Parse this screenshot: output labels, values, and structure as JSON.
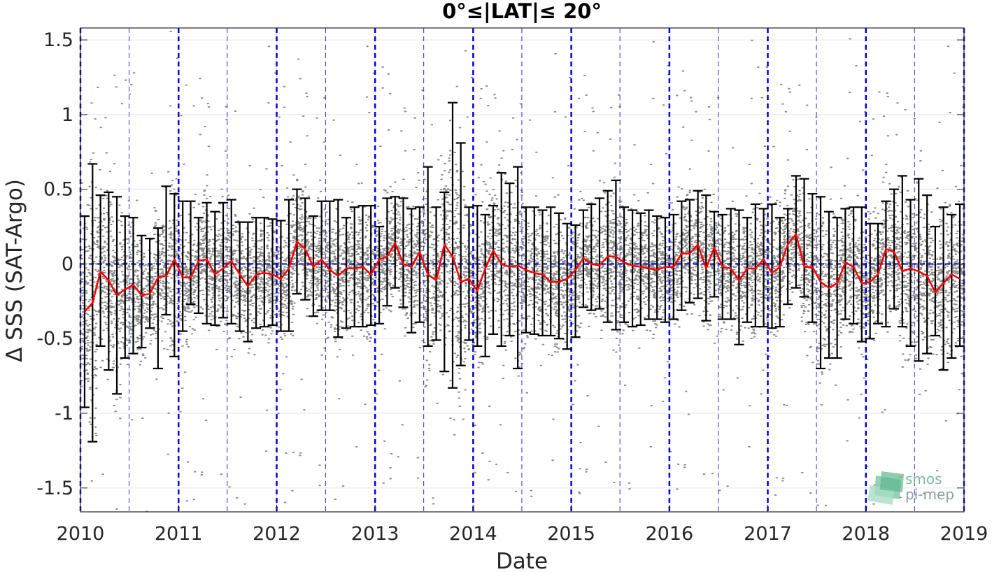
{
  "chart_data": {
    "type": "line",
    "title": "0°≤|LAT|≤ 20°",
    "xlabel": "Date",
    "ylabel": "Δ SSS (SAT-Argo)",
    "xlim": [
      "2010-01-01",
      "2019-01-01"
    ],
    "ylim": [
      -1.66,
      1.58
    ],
    "x_ticks": [
      "2010",
      "2011",
      "2012",
      "2013",
      "2014",
      "2015",
      "2016",
      "2017",
      "2018",
      "2019"
    ],
    "y_ticks": [
      -1.5,
      -1,
      -0.5,
      0,
      0.5,
      1,
      1.5
    ],
    "y_tick_labels": [
      "-1.5",
      "-1",
      "-0.5",
      "0",
      "0.5",
      "1",
      "1.5"
    ],
    "grid": true,
    "legend": "none",
    "colors": {
      "mean_line": "#ff0000",
      "error_bars": "#000000",
      "scatter_points": "#888888",
      "year_lines": "#0000e0",
      "zero_line": "#0000e0"
    },
    "series": [
      {
        "type": "line",
        "x": [
          "2010-01",
          "2010-02",
          "2010-03",
          "2010-04",
          "2010-05",
          "2010-06",
          "2010-07",
          "2010-08",
          "2010-09",
          "2010-10",
          "2010-11",
          "2010-12",
          "2011-01",
          "2011-02",
          "2011-03",
          "2011-04",
          "2011-05",
          "2011-06",
          "2011-07",
          "2011-08",
          "2011-09",
          "2011-10",
          "2011-11",
          "2011-12",
          "2012-01",
          "2012-02",
          "2012-03",
          "2012-04",
          "2012-05",
          "2012-06",
          "2012-07",
          "2012-08",
          "2012-09",
          "2012-10",
          "2012-11",
          "2012-12",
          "2013-01",
          "2013-02",
          "2013-03",
          "2013-04",
          "2013-05",
          "2013-06",
          "2013-07",
          "2013-08",
          "2013-09",
          "2013-10",
          "2013-11",
          "2013-12",
          "2014-01",
          "2014-02",
          "2014-03",
          "2014-04",
          "2014-05",
          "2014-06",
          "2014-07",
          "2014-08",
          "2014-09",
          "2014-10",
          "2014-11",
          "2014-12",
          "2015-01",
          "2015-02",
          "2015-03",
          "2015-04",
          "2015-05",
          "2015-06",
          "2015-07",
          "2015-08",
          "2015-09",
          "2015-10",
          "2015-11",
          "2015-12",
          "2016-01",
          "2016-02",
          "2016-03",
          "2016-04",
          "2016-05",
          "2016-06",
          "2016-07",
          "2016-08",
          "2016-09",
          "2016-10",
          "2016-11",
          "2016-12",
          "2017-01",
          "2017-02",
          "2017-03",
          "2017-04",
          "2017-05",
          "2017-06",
          "2017-07",
          "2017-08",
          "2017-09",
          "2017-10",
          "2017-11",
          "2017-12",
          "2018-01",
          "2018-02",
          "2018-03",
          "2018-04",
          "2018-05",
          "2018-06",
          "2018-07",
          "2018-08",
          "2018-09",
          "2018-10",
          "2018-11",
          "2018-12"
        ],
        "y": [
          -0.32,
          -0.26,
          -0.05,
          -0.11,
          -0.21,
          -0.17,
          -0.14,
          -0.21,
          -0.2,
          -0.09,
          -0.08,
          0.03,
          -0.09,
          -0.09,
          0.02,
          0.03,
          -0.07,
          -0.03,
          0.02,
          -0.07,
          -0.15,
          -0.07,
          -0.06,
          -0.07,
          -0.1,
          -0.03,
          0.15,
          0.1,
          -0.02,
          0.03,
          -0.04,
          -0.08,
          -0.03,
          -0.03,
          -0.02,
          -0.07,
          0.03,
          0.05,
          0.14,
          0.0,
          -0.02,
          0.08,
          -0.07,
          -0.11,
          0.13,
          0.05,
          -0.12,
          -0.1,
          -0.18,
          -0.03,
          0.09,
          0.0,
          -0.02,
          -0.01,
          -0.04,
          -0.06,
          -0.07,
          -0.12,
          -0.12,
          -0.1,
          -0.04,
          0.04,
          0.0,
          -0.01,
          0.05,
          0.05,
          0.01,
          -0.01,
          -0.02,
          -0.03,
          -0.04,
          -0.02,
          -0.02,
          0.07,
          0.07,
          0.13,
          -0.03,
          0.11,
          -0.02,
          -0.03,
          -0.11,
          -0.03,
          -0.03,
          0.03,
          -0.06,
          -0.02,
          0.13,
          0.2,
          -0.02,
          -0.02,
          -0.12,
          -0.16,
          -0.13,
          0.01,
          -0.02,
          -0.13,
          -0.12,
          -0.07,
          0.1,
          0.08,
          -0.05,
          -0.03,
          -0.05,
          -0.08,
          -0.19,
          -0.13,
          -0.07,
          -0.1
        ]
      },
      {
        "type": "errorbar",
        "upper": [
          0.32,
          0.67,
          0.46,
          0.48,
          0.45,
          0.32,
          0.31,
          0.19,
          0.17,
          0.24,
          0.52,
          0.47,
          0.42,
          0.42,
          0.31,
          0.41,
          0.35,
          0.41,
          0.43,
          0.28,
          0.28,
          0.31,
          0.31,
          0.3,
          0.29,
          0.43,
          0.5,
          0.44,
          0.32,
          0.42,
          0.42,
          0.43,
          0.31,
          0.38,
          0.39,
          0.39,
          0.25,
          0.44,
          0.45,
          0.44,
          0.37,
          0.38,
          0.65,
          0.38,
          0.48,
          1.08,
          0.81,
          0.38,
          0.39,
          0.33,
          0.39,
          0.61,
          0.54,
          0.65,
          0.38,
          0.38,
          0.36,
          0.38,
          0.34,
          0.27,
          0.26,
          0.36,
          0.4,
          0.44,
          0.49,
          0.56,
          0.38,
          0.36,
          0.34,
          0.36,
          0.32,
          0.31,
          0.33,
          0.42,
          0.43,
          0.49,
          0.46,
          0.35,
          0.33,
          0.37,
          0.36,
          0.31,
          0.4,
          0.37,
          0.4,
          0.31,
          0.37,
          0.59,
          0.57,
          0.47,
          0.45,
          0.35,
          0.31,
          0.37,
          0.38,
          0.38,
          0.27,
          0.27,
          0.42,
          0.5,
          0.59,
          0.43,
          0.57,
          0.46,
          0.25,
          0.38,
          0.33,
          0.4
        ],
        "lower": [
          -0.96,
          -1.19,
          -0.55,
          -0.71,
          -0.87,
          -0.63,
          -0.6,
          -0.56,
          -0.43,
          -0.7,
          -0.34,
          -0.62,
          -0.45,
          -0.27,
          -0.33,
          -0.4,
          -0.41,
          -0.36,
          -0.4,
          -0.45,
          -0.52,
          -0.43,
          -0.42,
          -0.41,
          -0.45,
          -0.45,
          -0.2,
          -0.24,
          -0.35,
          -0.31,
          -0.31,
          -0.49,
          -0.43,
          -0.42,
          -0.42,
          -0.41,
          -0.4,
          -0.28,
          -0.16,
          -0.29,
          -0.46,
          -0.39,
          -0.55,
          -0.51,
          -0.72,
          -0.83,
          -0.68,
          -0.51,
          -0.55,
          -0.62,
          -0.47,
          -0.55,
          -0.48,
          -0.7,
          -0.46,
          -0.47,
          -0.48,
          -0.48,
          -0.5,
          -0.57,
          -0.49,
          -0.29,
          -0.31,
          -0.3,
          -0.39,
          -0.44,
          -0.39,
          -0.42,
          -0.41,
          -0.37,
          -0.37,
          -0.39,
          -0.37,
          -0.31,
          -0.26,
          -0.23,
          -0.38,
          -0.22,
          -0.37,
          -0.37,
          -0.54,
          -0.39,
          -0.42,
          -0.42,
          -0.43,
          -0.42,
          -0.27,
          -0.16,
          -0.22,
          -0.39,
          -0.7,
          -0.63,
          -0.63,
          -0.37,
          -0.4,
          -0.52,
          -0.5,
          -0.4,
          -0.42,
          -0.3,
          -0.42,
          -0.55,
          -0.65,
          -0.6,
          -0.48,
          -0.71,
          -0.63,
          -0.55
        ]
      }
    ],
    "scatter_points_count": "dense cloud of individual collocation differences (gray dots)"
  },
  "logo": {
    "line1": "smos",
    "line2": "pi-mep"
  }
}
